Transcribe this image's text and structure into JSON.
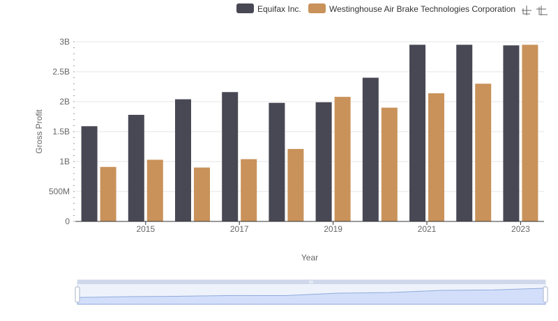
{
  "toolbar": {
    "zoom_icon": "zoom-box-icon",
    "restore_icon": "restore-icon"
  },
  "colors": {
    "equifax": "#484855",
    "wabtec": "#c9925a",
    "grid": "#e6e6e6",
    "axis": "#333333",
    "slider_fill": "#d3dffa",
    "slider_line": "#8faadc",
    "slider_bg": "#eef2fb",
    "slider_handle": "#cfd8ea"
  },
  "chart_data": {
    "type": "bar",
    "xlabel": "Year",
    "ylabel": "Gross Profit",
    "ylim": [
      0,
      3000000000
    ],
    "y_ticks": [
      0,
      500000000,
      1000000000,
      1500000000,
      2000000000,
      2500000000,
      3000000000
    ],
    "y_tick_labels": [
      "0",
      "500M",
      "1B",
      "1.5B",
      "2B",
      "2.5B",
      "3B"
    ],
    "categories": [
      "2014",
      "2015",
      "2016",
      "2017",
      "2018",
      "2019",
      "2020",
      "2021",
      "2022",
      "2023"
    ],
    "x_tick_labels": [
      "2015",
      "2017",
      "2019",
      "2021",
      "2023"
    ],
    "grid": true,
    "legend_position": "top-right",
    "series": [
      {
        "name": "Equifax Inc.",
        "values": [
          1590000000,
          1780000000,
          2040000000,
          2160000000,
          1980000000,
          1990000000,
          2400000000,
          2950000000,
          2950000000,
          2940000000
        ]
      },
      {
        "name": "Westinghouse Air Brake Technologies Corporation",
        "values": [
          910000000,
          1030000000,
          900000000,
          1040000000,
          1210000000,
          2080000000,
          1900000000,
          2140000000,
          2300000000,
          2950000000
        ]
      }
    ]
  }
}
